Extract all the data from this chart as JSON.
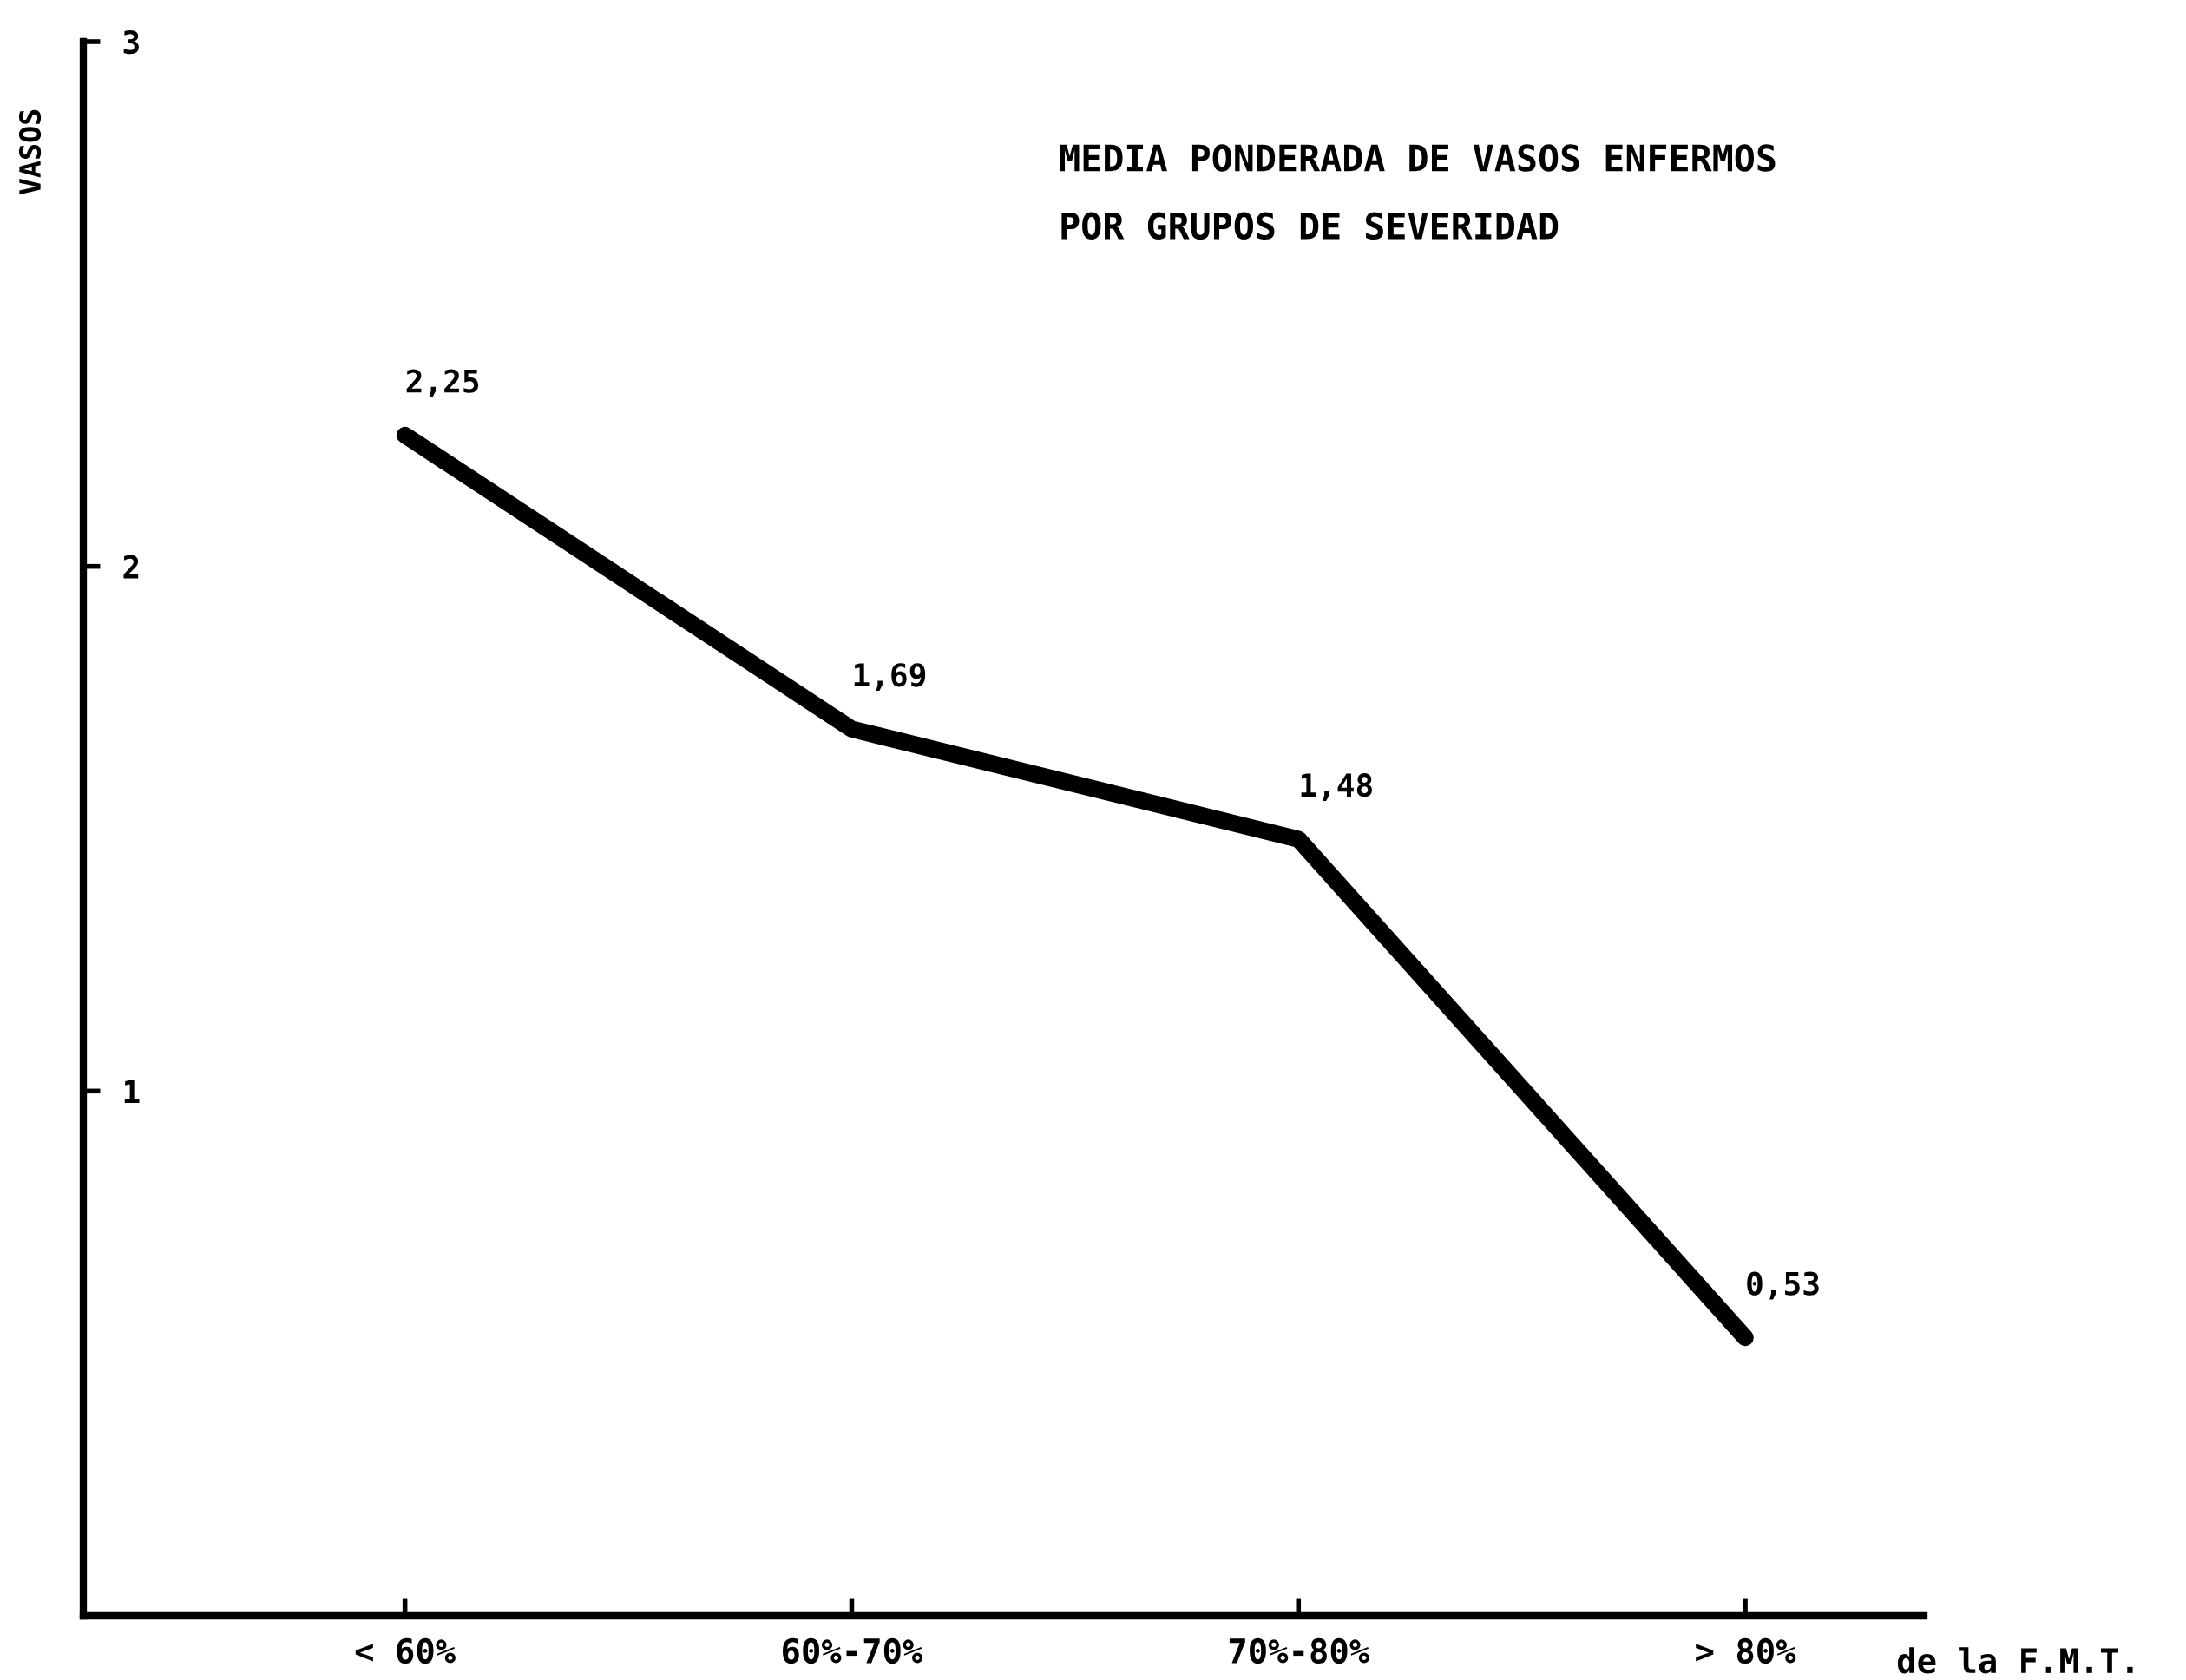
{
  "chart_data": {
    "type": "line",
    "title": "MEDIA PONDERADA DE VASOS ENFERMOS\nPOR GRUPOS DE SEVERIDAD",
    "xlabel": "de la F.M.T.",
    "ylabel": "VASOS",
    "categories": [
      "< 60%",
      "60%-70%",
      "70%-80%",
      "> 80%"
    ],
    "series": [
      {
        "color": "#000000",
        "values": [
          2.25,
          1.69,
          1.48,
          0.53
        ],
        "value_labels": [
          "2,25",
          "1,69",
          "1,48",
          "0,53"
        ]
      }
    ],
    "ylim": [
      0,
      3
    ],
    "yticks": [
      1,
      2,
      3
    ],
    "grid": false,
    "legend": false,
    "line_style": "solid",
    "marker": "none"
  }
}
